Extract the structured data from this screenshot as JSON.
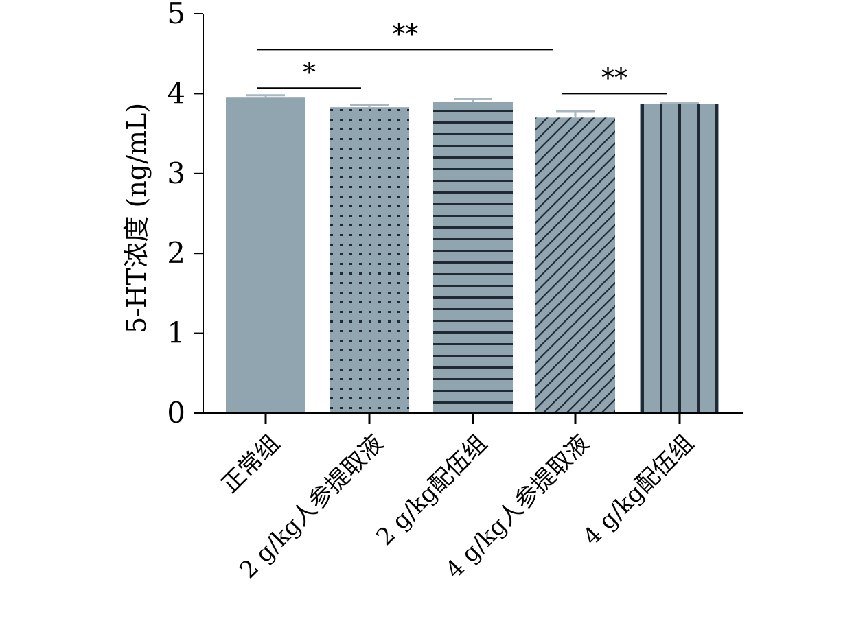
{
  "chart_data": {
    "type": "bar",
    "title": "",
    "xlabel": "",
    "ylabel": "5-HT浓度 (ng/mL)",
    "ylim": [
      0,
      5
    ],
    "yticks": [
      "0",
      "1",
      "2",
      "3",
      "4",
      "5"
    ],
    "categories": [
      "正常组",
      "2 g/kg人参提取液",
      "2 g/kg配伍组",
      "4 g/kg人参提取液",
      "4 g/kg配伍组"
    ],
    "values": [
      3.95,
      3.83,
      3.9,
      3.7,
      3.87
    ],
    "error": [
      0.03,
      0.03,
      0.03,
      0.08,
      0.01
    ],
    "patterns": [
      "solid",
      "dots",
      "horizontal-lines",
      "diagonal-lines",
      "vertical-lines"
    ],
    "significance": [
      {
        "from": 0,
        "to": 3,
        "label": "**",
        "y": 4.55
      },
      {
        "from": 0,
        "to": 1,
        "label": "*",
        "y": 4.07
      },
      {
        "from": 3,
        "to": 4,
        "label": "**",
        "y": 4.0
      }
    ],
    "colors": {
      "bar": "#91a5b0",
      "pattern": "#1f2a35",
      "axis": "#000000",
      "errorbar": "#a9b8c0"
    },
    "grid": false,
    "legend": "none"
  }
}
